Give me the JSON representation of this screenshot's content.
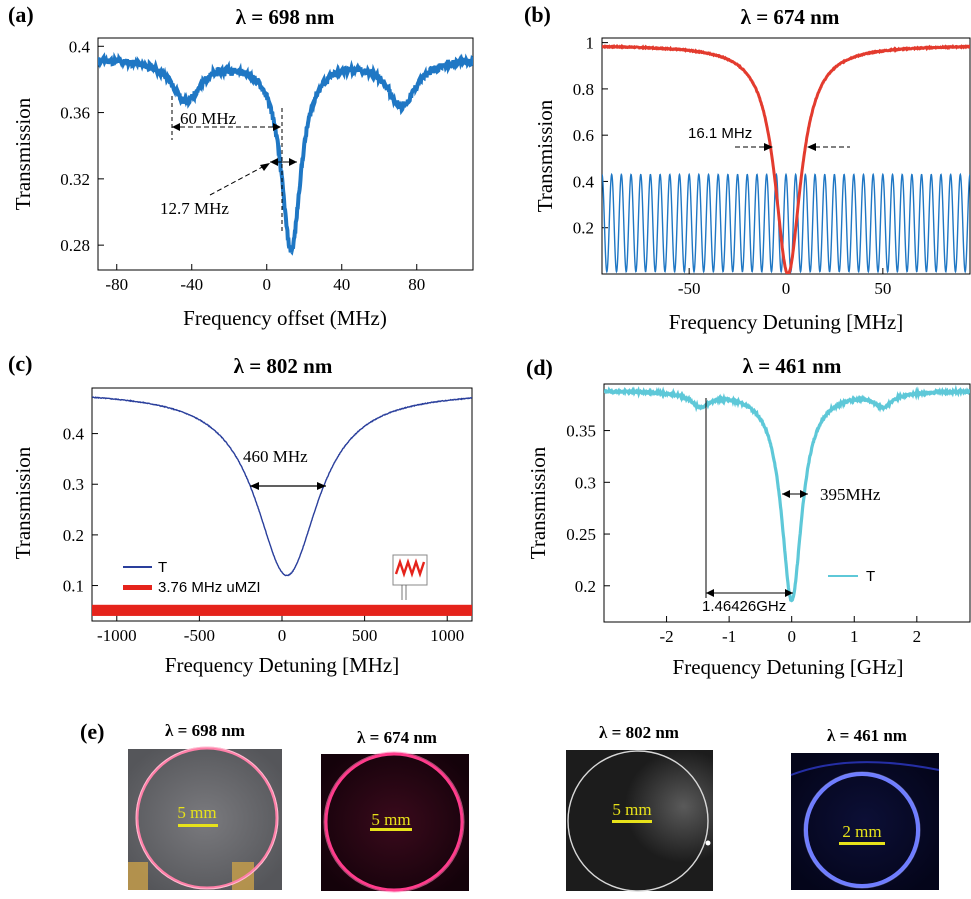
{
  "chart_data": [
    {
      "panel": "(a)",
      "type": "line",
      "title": "λ = 698 nm",
      "xlabel": "Frequency offset (MHz)",
      "ylabel": "Transmission",
      "xlim": [
        -90,
        110
      ],
      "ylim": [
        0.265,
        0.405
      ],
      "xticks": [
        "-80",
        "-40",
        "0",
        "40",
        "80"
      ],
      "yticks": [
        "0.28",
        "0.32",
        "0.36",
        "0.4"
      ],
      "series": [
        {
          "color": "#1f77c4",
          "dips": [
            {
              "center": -43,
              "depth": 0.025,
              "width": 18
            },
            {
              "center": 13,
              "depth": 0.115,
              "width": 12.7
            },
            {
              "center": 72,
              "depth": 0.028,
              "width": 18
            }
          ],
          "baseline": 0.393
        }
      ],
      "annotations": [
        "60 MHz",
        "12.7 MHz"
      ]
    },
    {
      "panel": "(b)",
      "type": "line",
      "title": "λ = 674 nm",
      "xlabel": "Frequency Detuning [MHz]",
      "ylabel": "Transmission",
      "xlim": [
        -95,
        95
      ],
      "ylim": [
        0,
        1.02
      ],
      "xticks": [
        "-50",
        "0",
        "50"
      ],
      "yticks": [
        "0.2",
        "0.4",
        "0.6",
        "0.8",
        "1"
      ],
      "series": [
        {
          "color": "#e33b2e",
          "type": "lorentzian-dip",
          "center": 1,
          "fwhm": 16.1,
          "baseline": 0.99,
          "min": 0.0
        },
        {
          "color": "#1f77c4",
          "type": "fringes",
          "period": 5.0,
          "min": 0.01,
          "max": 0.43
        }
      ],
      "annotations": [
        "16.1 MHz"
      ]
    },
    {
      "panel": "(c)",
      "type": "line",
      "title": "λ = 802 nm",
      "xlabel": "Frequency Detuning [MHz]",
      "ylabel": "Transmission",
      "xlim": [
        -1150,
        1150
      ],
      "ylim": [
        0.03,
        0.49
      ],
      "xticks": [
        "-1000",
        "-500",
        "0",
        "500",
        "1000"
      ],
      "yticks": [
        "0.1",
        "0.2",
        "0.3",
        "0.4"
      ],
      "series": [
        {
          "name": "T",
          "color": "#2a3f9c",
          "type": "lorentzian-dip",
          "center": 30,
          "fwhm": 460,
          "baseline": 0.485,
          "min": 0.12
        },
        {
          "name": "3.76 MHz uMZI",
          "color": "#e5231b",
          "type": "band",
          "low": 0.04,
          "high": 0.062
        }
      ],
      "annotations": [
        "460 MHz"
      ],
      "legend": "bottom-left"
    },
    {
      "panel": "(d)",
      "type": "line",
      "title": "λ = 461 nm",
      "xlabel": "Frequency Detuning [GHz]",
      "ylabel": "Transmission",
      "xlim": [
        -3.0,
        2.85
      ],
      "ylim": [
        0.165,
        0.395
      ],
      "xticks": [
        "-2",
        "-1",
        "0",
        "1",
        "2"
      ],
      "yticks": [
        "0.2",
        "0.25",
        "0.3",
        "0.35"
      ],
      "series": [
        {
          "name": "T",
          "color": "#5ec8d8",
          "dips": [
            {
              "center": -1.46,
              "depth": 0.013,
              "width": 0.35
            },
            {
              "center": 0.0,
              "depth": 0.203,
              "width": 0.395
            },
            {
              "center": 1.46,
              "depth": 0.013,
              "width": 0.35
            }
          ],
          "baseline": 0.389
        }
      ],
      "annotations": [
        "395MHz",
        "1.46426GHz"
      ],
      "legend": "center-right"
    }
  ],
  "panel_e": {
    "label": "(e)",
    "images": [
      {
        "title": "λ = 698 nm",
        "scale": "5 mm",
        "ring": "#ff7fa8",
        "bg": "#6e6e72"
      },
      {
        "title": "λ = 674 nm",
        "scale": "5 mm",
        "ring": "#ff3c8c",
        "bg": "#2a0614"
      },
      {
        "title": "λ = 802 nm",
        "scale": "5 mm",
        "ring": "#d8d8d8",
        "bg": "#1e1e1e"
      },
      {
        "title": "λ = 461 nm",
        "scale": "2 mm",
        "ring": "#6f7dff",
        "bg": "#080a2a"
      }
    ]
  }
}
